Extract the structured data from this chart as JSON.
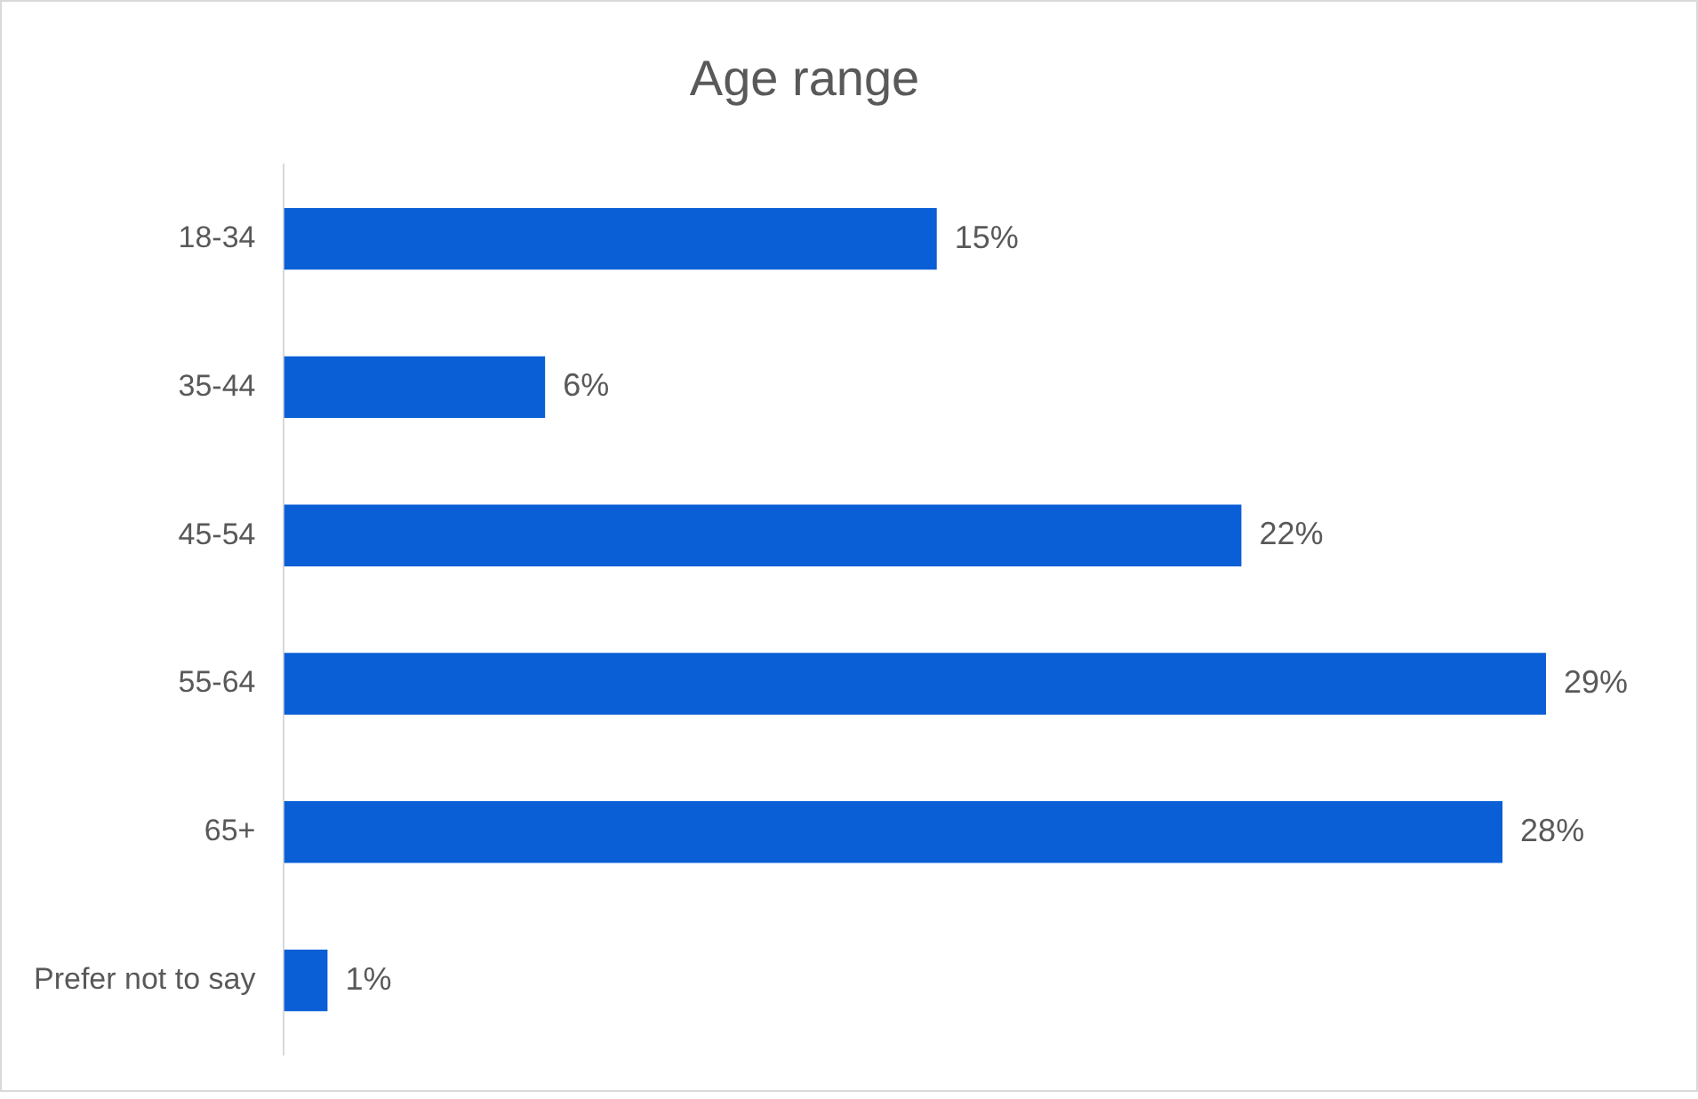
{
  "chart_data": {
    "type": "bar",
    "orientation": "horizontal",
    "title": "Age range",
    "categories": [
      "18-34",
      "35-44",
      "45-54",
      "55-64",
      "65+",
      "Prefer not to say"
    ],
    "values": [
      15,
      6,
      22,
      29,
      28,
      1
    ],
    "value_labels": [
      "15%",
      "6%",
      "22%",
      "29%",
      "28%",
      "1%"
    ],
    "color": "#0a5fd6",
    "tick_labels": "y"
  }
}
